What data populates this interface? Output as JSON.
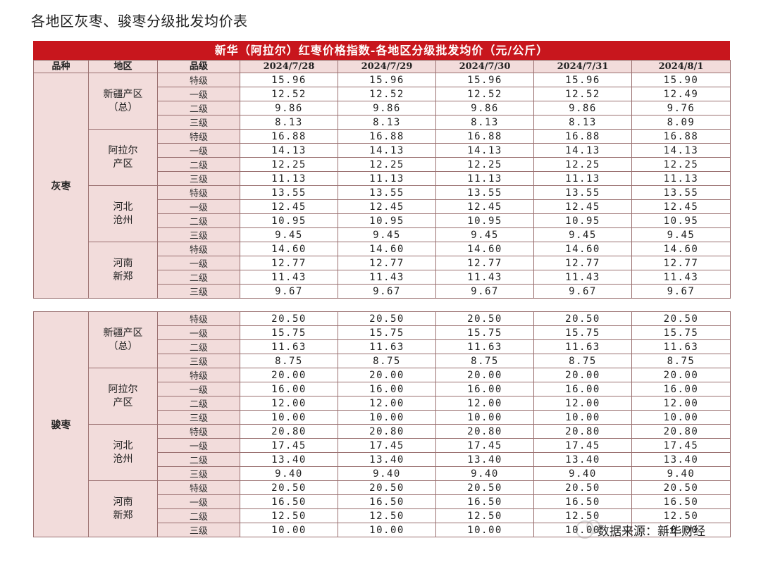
{
  "page_title": "各地区灰枣、骏枣分级批发均价表",
  "table": {
    "banner": "新华（阿拉尔）红枣价格指数-各地区分级批发均价（元/公斤）",
    "headers": [
      "品种",
      "地区",
      "品级",
      "2024/7/28",
      "2024/7/29",
      "2024/7/30",
      "2024/7/31",
      "2024/8/1"
    ],
    "grades": [
      "特级",
      "一级",
      "二级",
      "三级"
    ],
    "groups": [
      {
        "variety": "灰枣",
        "regions": [
          {
            "name_lines": [
              "新疆产区",
              "（总）"
            ],
            "rows": [
              [
                "15.96",
                "15.96",
                "15.96",
                "15.96",
                "15.90"
              ],
              [
                "12.52",
                "12.52",
                "12.52",
                "12.52",
                "12.49"
              ],
              [
                "9.86",
                "9.86",
                "9.86",
                "9.86",
                "9.76"
              ],
              [
                "8.13",
                "8.13",
                "8.13",
                "8.13",
                "8.09"
              ]
            ]
          },
          {
            "name_lines": [
              "阿拉尔",
              "产区"
            ],
            "rows": [
              [
                "16.88",
                "16.88",
                "16.88",
                "16.88",
                "16.88"
              ],
              [
                "14.13",
                "14.13",
                "14.13",
                "14.13",
                "14.13"
              ],
              [
                "12.25",
                "12.25",
                "12.25",
                "12.25",
                "12.25"
              ],
              [
                "11.13",
                "11.13",
                "11.13",
                "11.13",
                "11.13"
              ]
            ]
          },
          {
            "name_lines": [
              "河北",
              "沧州"
            ],
            "rows": [
              [
                "13.55",
                "13.55",
                "13.55",
                "13.55",
                "13.55"
              ],
              [
                "12.45",
                "12.45",
                "12.45",
                "12.45",
                "12.45"
              ],
              [
                "10.95",
                "10.95",
                "10.95",
                "10.95",
                "10.95"
              ],
              [
                "9.45",
                "9.45",
                "9.45",
                "9.45",
                "9.45"
              ]
            ]
          },
          {
            "name_lines": [
              "河南",
              "新郑"
            ],
            "rows": [
              [
                "14.60",
                "14.60",
                "14.60",
                "14.60",
                "14.60"
              ],
              [
                "12.77",
                "12.77",
                "12.77",
                "12.77",
                "12.77"
              ],
              [
                "11.43",
                "11.43",
                "11.43",
                "11.43",
                "11.43"
              ],
              [
                "9.67",
                "9.67",
                "9.67",
                "9.67",
                "9.67"
              ]
            ]
          }
        ]
      },
      {
        "variety": "骏枣",
        "regions": [
          {
            "name_lines": [
              "新疆产区",
              "（总）"
            ],
            "rows": [
              [
                "20.50",
                "20.50",
                "20.50",
                "20.50",
                "20.50"
              ],
              [
                "15.75",
                "15.75",
                "15.75",
                "15.75",
                "15.75"
              ],
              [
                "11.63",
                "11.63",
                "11.63",
                "11.63",
                "11.63"
              ],
              [
                "8.75",
                "8.75",
                "8.75",
                "8.75",
                "8.75"
              ]
            ]
          },
          {
            "name_lines": [
              "阿拉尔",
              "产区"
            ],
            "rows": [
              [
                "20.00",
                "20.00",
                "20.00",
                "20.00",
                "20.00"
              ],
              [
                "16.00",
                "16.00",
                "16.00",
                "16.00",
                "16.00"
              ],
              [
                "12.00",
                "12.00",
                "12.00",
                "12.00",
                "12.00"
              ],
              [
                "10.00",
                "10.00",
                "10.00",
                "10.00",
                "10.00"
              ]
            ]
          },
          {
            "name_lines": [
              "河北",
              "沧州"
            ],
            "rows": [
              [
                "20.80",
                "20.80",
                "20.80",
                "20.80",
                "20.80"
              ],
              [
                "17.45",
                "17.45",
                "17.45",
                "17.45",
                "17.45"
              ],
              [
                "13.40",
                "13.40",
                "13.40",
                "13.40",
                "13.40"
              ],
              [
                "9.40",
                "9.40",
                "9.40",
                "9.40",
                "9.40"
              ]
            ]
          },
          {
            "name_lines": [
              "河南",
              "新郑"
            ],
            "rows": [
              [
                "20.50",
                "20.50",
                "20.50",
                "20.50",
                "20.50"
              ],
              [
                "16.50",
                "16.50",
                "16.50",
                "16.50",
                "16.50"
              ],
              [
                "12.50",
                "12.50",
                "12.50",
                "12.50",
                "12.50"
              ],
              [
                "10.00",
                "10.00",
                "10.00",
                "10.00",
                "10.00"
              ]
            ]
          }
        ]
      }
    ]
  },
  "source": "数据来源：新华财经",
  "colors": {
    "banner_bg": "#c8161d",
    "header_bg": "#f2dcdb"
  }
}
